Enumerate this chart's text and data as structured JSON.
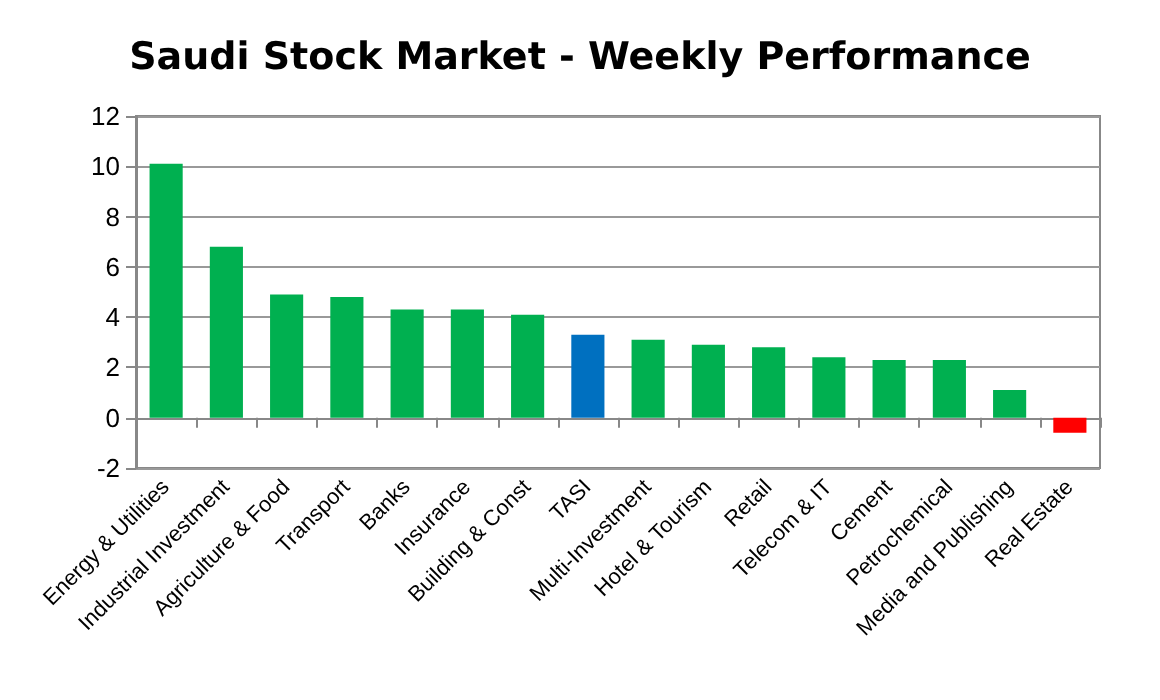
{
  "chart_data": {
    "type": "bar",
    "title": "Saudi Stock Market - Weekly Performance",
    "categories": [
      "Energy & Utilities",
      "Industrial Investment",
      "Agriculture & Food",
      "Transport",
      "Banks",
      "Insurance",
      "Building & Const",
      "TASI",
      "Multi-Investment",
      "Hotel & Tourism",
      "Retail",
      "Telecom & IT",
      "Cement",
      "Petrochemical",
      "Media and Publishing",
      "Real Estate"
    ],
    "values": [
      10.1,
      6.8,
      4.9,
      4.8,
      4.3,
      4.3,
      4.1,
      3.3,
      3.1,
      2.9,
      2.8,
      2.4,
      2.3,
      2.3,
      1.1,
      -0.6
    ],
    "colors": [
      "#00b050",
      "#00b050",
      "#00b050",
      "#00b050",
      "#00b050",
      "#00b050",
      "#00b050",
      "#0070c0",
      "#00b050",
      "#00b050",
      "#00b050",
      "#00b050",
      "#00b050",
      "#00b050",
      "#00b050",
      "#ff0000"
    ],
    "ylim": [
      -2,
      12
    ],
    "yticks": [
      -2,
      0,
      2,
      4,
      6,
      8,
      10,
      12
    ],
    "grid": "y"
  }
}
